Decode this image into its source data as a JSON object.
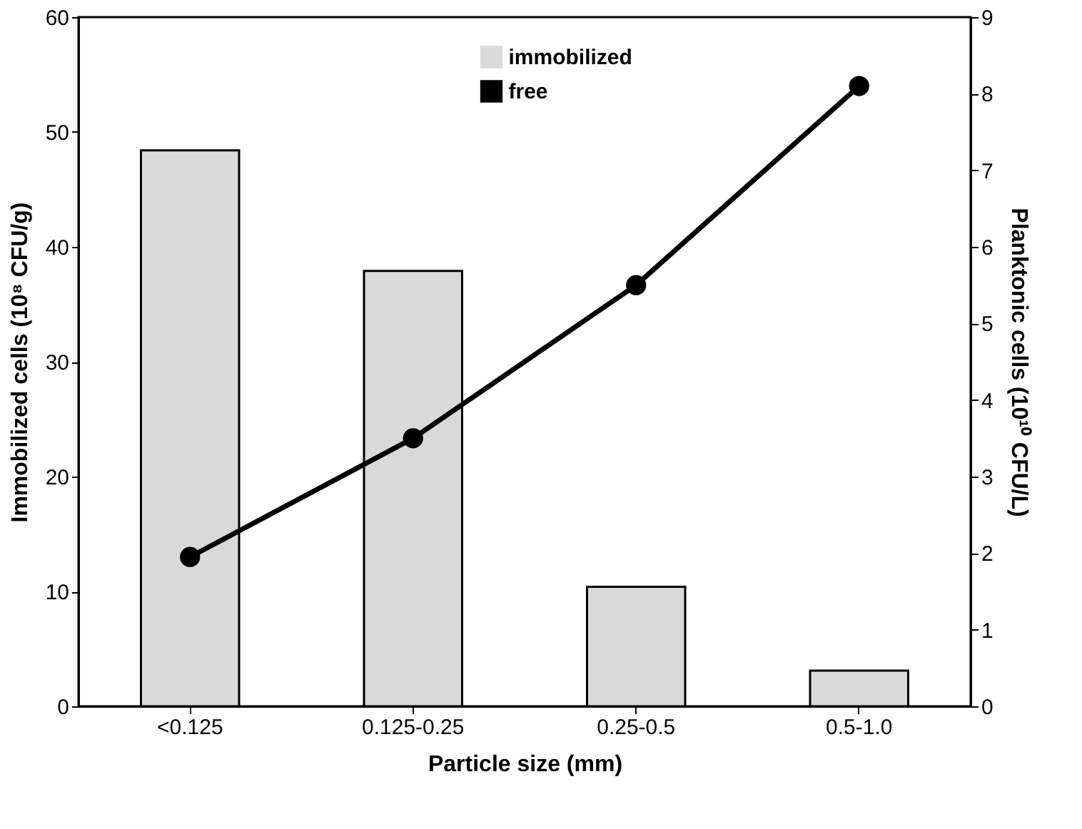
{
  "chart_data": {
    "type": "bar",
    "xlabel": "Particle size (mm)",
    "ylabel": "Immobilized cells (10⁸ CFU/g)",
    "y2label": "Planktonic cells (10¹⁰ CFU/L)",
    "categories": [
      "<0.125",
      "0.125-0.25",
      "0.25-0.5",
      "0.5-1.0"
    ],
    "series": [
      {
        "name": "immobilized",
        "color": "#d9d9d9",
        "values": [
          48.4,
          37.9,
          10.4,
          3.1
        ]
      },
      {
        "name": "free",
        "type": "line",
        "axis": "y2",
        "color": "#000000",
        "values": [
          1.95,
          3.5,
          5.5,
          8.1
        ]
      }
    ],
    "ylim": [
      0,
      60
    ],
    "yticks": [
      0,
      10,
      20,
      30,
      40,
      50,
      60
    ],
    "y2lim": [
      0,
      9
    ],
    "y2ticks": [
      0,
      1,
      2,
      3,
      4,
      5,
      6,
      7,
      8,
      9
    ],
    "legend": "top",
    "marker": "circle",
    "line_style": "solid",
    "grid": false
  }
}
